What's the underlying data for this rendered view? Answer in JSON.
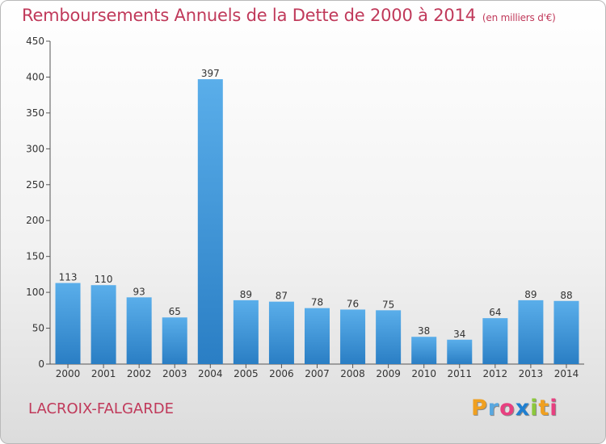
{
  "header": {
    "title": "Remboursements Annuels de la Dette de 2000 à 2014",
    "unit": "(en milliers d'€)"
  },
  "footer": {
    "place": "LACROIX-FALGARDE",
    "logo": [
      "P",
      "r",
      "o",
      "x",
      "i",
      "t",
      "i"
    ]
  },
  "colors": {
    "title": "#c0395a",
    "bar_top": "#5aaeea",
    "bar_bottom": "#2a7ec4"
  },
  "chart_data": {
    "type": "bar",
    "title": "Remboursements Annuels de la Dette de 2000 à 2014",
    "xlabel": "",
    "ylabel": "",
    "categories": [
      "2000",
      "2001",
      "2002",
      "2003",
      "2004",
      "2005",
      "2006",
      "2007",
      "2008",
      "2009",
      "2010",
      "2011",
      "2012",
      "2013",
      "2014"
    ],
    "values": [
      113,
      110,
      93,
      65,
      397,
      89,
      87,
      78,
      76,
      75,
      38,
      34,
      64,
      89,
      88
    ],
    "ylim": [
      0,
      450
    ],
    "yticks": [
      0,
      50,
      100,
      150,
      200,
      250,
      300,
      350,
      400,
      450
    ],
    "grid": false,
    "legend": "none"
  }
}
